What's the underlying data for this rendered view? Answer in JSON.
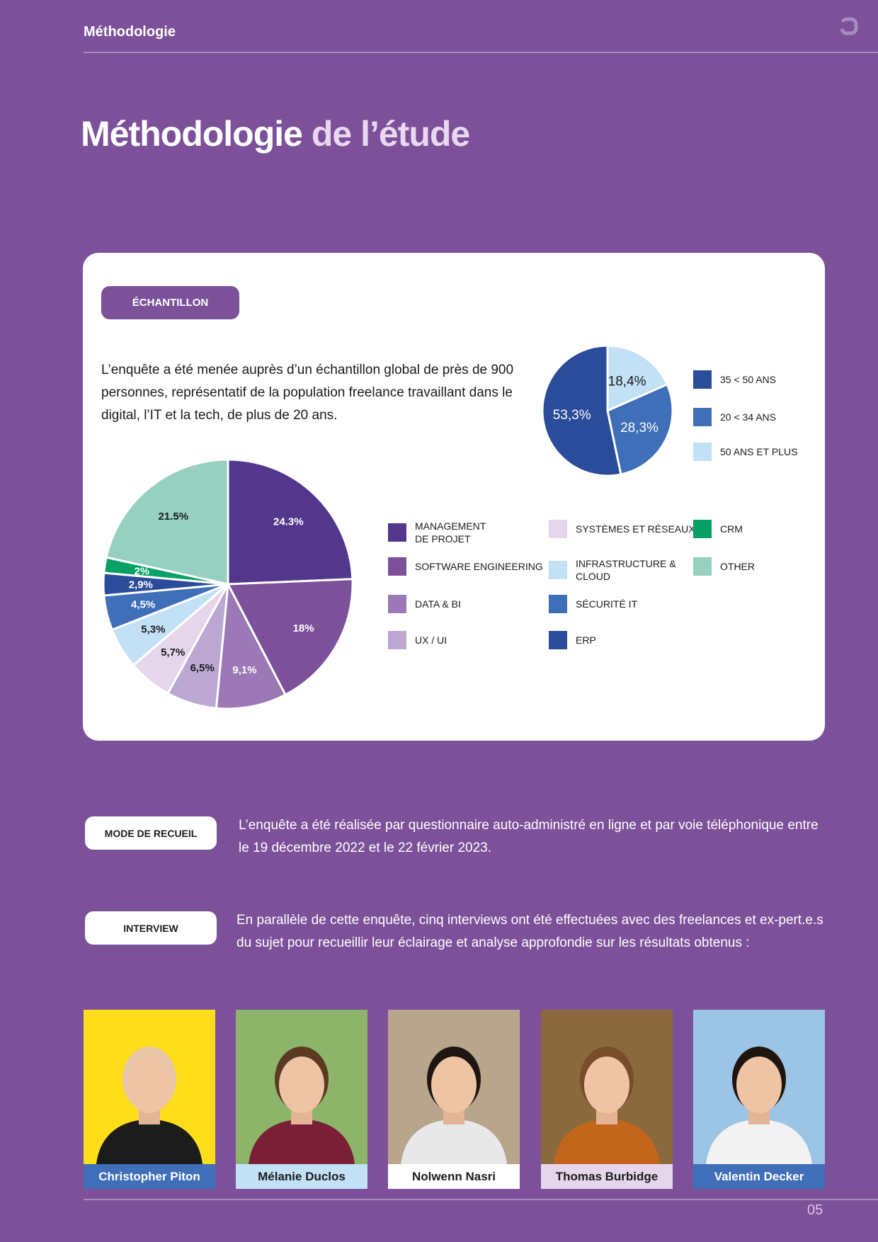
{
  "header": {
    "section_title": "Méthodologie",
    "logo_icon": "rounded-square-outline-icon"
  },
  "title": {
    "main": "Méthodologie",
    "accent": "de l’étude"
  },
  "sample": {
    "label": "ÉCHANTILLON",
    "text": "L’enquête a été menée auprès d’un échantillon global de près de 900 personnes, représentatif de la population freelance travaillant dans le digital, l’IT et la tech, de plus de 20 ans."
  },
  "chart_data": [
    {
      "type": "pie",
      "title": "",
      "slices": [
        {
          "label": "50 ANS ET PLUS",
          "value": 18.4,
          "display": "18,4%",
          "color": "#c2e1f7",
          "text_color": "#1b1b1b"
        },
        {
          "label": "20 < 34 ANS",
          "value": 28.3,
          "display": "28,3%",
          "color": "#3f6fb9",
          "text_color": "#ffffff"
        },
        {
          "label": "35 < 50 ANS",
          "value": 53.3,
          "display": "53,3%",
          "color": "#2b4b9b",
          "text_color": "#ffffff"
        }
      ],
      "legend": [
        {
          "label": "35 < 50 ANS",
          "color": "#2b4b9b"
        },
        {
          "label": "20 < 34 ANS",
          "color": "#3f6fb9"
        },
        {
          "label": "50 ANS ET PLUS",
          "color": "#c2e1f7"
        }
      ],
      "legend_position": "right"
    },
    {
      "type": "pie",
      "title": "",
      "slices": [
        {
          "label": "MANAGEMENT DE PROJET",
          "value": 24.3,
          "display": "24.3%",
          "color": "#53378d",
          "text_color": "#ffffff"
        },
        {
          "label": "SOFTWARE ENGINEERING",
          "value": 18,
          "display": "18%",
          "color": "#7c519a",
          "text_color": "#ffffff"
        },
        {
          "label": "DATA & BI",
          "value": 9.1,
          "display": "9,1%",
          "color": "#9c78b6",
          "text_color": "#ffffff"
        },
        {
          "label": "UX / UI",
          "value": 6.5,
          "display": "6,5%",
          "color": "#bca7d3",
          "text_color": "#1b1b1b"
        },
        {
          "label": "SYSTÈMES ET RÉSEAUX",
          "value": 5.7,
          "display": "5,7%",
          "color": "#e6d6ec",
          "text_color": "#1b1b1b"
        },
        {
          "label": "INFRASTRUCTURE & CLOUD",
          "value": 5.3,
          "display": "5,3%",
          "color": "#c2e1f7",
          "text_color": "#1b1b1b"
        },
        {
          "label": "SÉCURITÉ IT",
          "value": 4.5,
          "display": "4,5%",
          "color": "#3f6fb9",
          "text_color": "#ffffff"
        },
        {
          "label": "ERP",
          "value": 2.9,
          "display": "2,9%",
          "color": "#2b4b9b",
          "text_color": "#ffffff"
        },
        {
          "label": "CRM",
          "value": 2,
          "display": "2%",
          "color": "#08a165",
          "text_color": "#ffffff"
        },
        {
          "label": "OTHER",
          "value": 21.5,
          "display": "21.5%",
          "color": "#96d0c0",
          "text_color": "#1b1b1b"
        }
      ],
      "legend": [
        {
          "label": "MANAGEMENT",
          "label2": "DE PROJET",
          "color": "#53378d"
        },
        {
          "label": "SOFTWARE ENGINEERING",
          "color": "#7c519a"
        },
        {
          "label": "DATA & BI",
          "color": "#9c78b6"
        },
        {
          "label": "UX / UI",
          "color": "#bca7d3"
        },
        {
          "label": "SYSTÈMES ET RÉSEAUX",
          "color": "#e6d6ec"
        },
        {
          "label": "INFRASTRUCTURE & CLOUD",
          "color": "#c2e1f7"
        },
        {
          "label": "SÉCURITÉ IT",
          "color": "#3f6fb9"
        },
        {
          "label": "ERP",
          "color": "#2b4b9b"
        },
        {
          "label": "CRM",
          "color": "#08a165"
        },
        {
          "label": "OTHER",
          "color": "#96d0c0"
        }
      ],
      "legend_position": "right"
    }
  ],
  "collection": {
    "label": "MODE DE RECUEIL",
    "text": "L’enquête a été réalisée par questionnaire auto-administré en ligne et par voie téléphonique entre le 19 décembre 2022 et le 22 février 2023."
  },
  "interview": {
    "label": "INTERVIEW",
    "text": "En parallèle de cette enquête, cinq interviews ont été effectuées avec des freelances et ex-pert.e.s du sujet pour recueillir leur éclairage et analyse approfondie sur les résultats obtenus :"
  },
  "people": [
    {
      "name": "Christopher Piton",
      "bg": "#ffdd1a",
      "bar": "#3f6fb9",
      "bar_text": "#ffffff"
    },
    {
      "name": "Mélanie Duclos",
      "bg": "#8cb56a",
      "bar": "#c2e1f7",
      "bar_text": "#1b1b1b"
    },
    {
      "name": "Nolwenn Nasri",
      "bg": "#b9a48c",
      "bar": "#ffffff",
      "bar_text": "#1b1b1b"
    },
    {
      "name": "Thomas Burbidge",
      "bg": "#8a6a3c",
      "bar": "#e6d6ec",
      "bar_text": "#1b1b1b"
    },
    {
      "name": "Valentin Decker",
      "bg": "#9cc4e4",
      "bar": "#3f6fb9",
      "bar_text": "#ffffff"
    }
  ],
  "footer": {
    "page_number": "05"
  }
}
